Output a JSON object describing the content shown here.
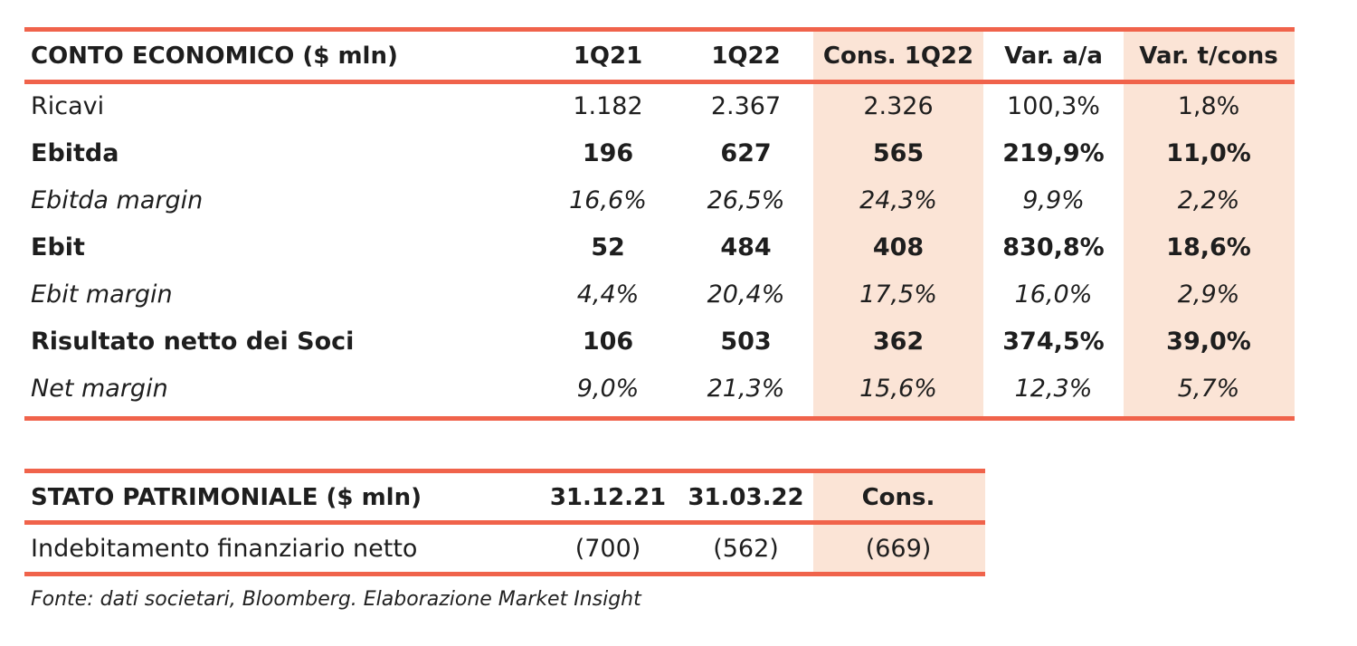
{
  "income": {
    "headers": [
      "CONTO ECONOMICO ($ mln)",
      "1Q21",
      "1Q22",
      "Cons. 1Q22",
      "Var. a/a",
      "Var. t/cons"
    ],
    "rows": [
      {
        "label": "Ricavi",
        "style": "normal",
        "values": [
          "1.182",
          "2.367",
          "2.326",
          "100,3%",
          "1,8%"
        ]
      },
      {
        "label": "Ebitda",
        "style": "bold",
        "values": [
          "196",
          "627",
          "565",
          "219,9%",
          "11,0%"
        ]
      },
      {
        "label": "Ebitda margin",
        "style": "italic",
        "values": [
          "16,6%",
          "26,5%",
          "24,3%",
          "9,9%",
          "2,2%"
        ]
      },
      {
        "label": "Ebit",
        "style": "bold",
        "values": [
          "52",
          "484",
          "408",
          "830,8%",
          "18,6%"
        ]
      },
      {
        "label": "Ebit margin",
        "style": "italic",
        "values": [
          "4,4%",
          "20,4%",
          "17,5%",
          "16,0%",
          "2,9%"
        ]
      },
      {
        "label": "Risultato netto dei Soci",
        "style": "bold",
        "values": [
          "106",
          "503",
          "362",
          "374,5%",
          "39,0%"
        ]
      },
      {
        "label": "Net margin",
        "style": "italic",
        "values": [
          "9,0%",
          "21,3%",
          "15,6%",
          "12,3%",
          "5,7%"
        ]
      }
    ]
  },
  "balance": {
    "headers": [
      "STATO PATRIMONIALE  ($ mln)",
      "31.12.21",
      "31.03.22",
      "Cons."
    ],
    "rows": [
      {
        "label": "Indebitamento finanziario netto",
        "style": "normal",
        "values": [
          "(700)",
          "(562)",
          "(669)"
        ]
      }
    ]
  },
  "source": "Fonte: dati societari, Bloomberg. Elaborazione Market Insight",
  "colors": {
    "accent": "#f0634b",
    "shade": "#fbe4d6"
  }
}
